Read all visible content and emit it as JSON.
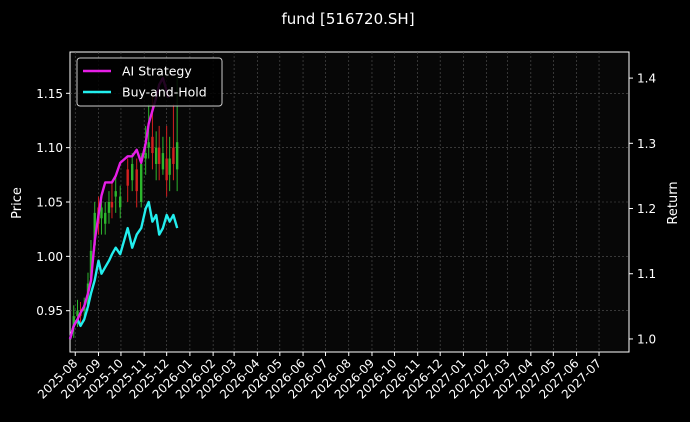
{
  "chart_data": {
    "type": "line",
    "title": "fund [516720.SH]",
    "ylabel_left": "Price",
    "ylabel_right": "Return",
    "x_ticks": [
      "2025-08",
      "2025-09",
      "2025-10",
      "2025-11",
      "2025-12",
      "2026-01",
      "2026-02",
      "2026-03",
      "2026-04",
      "2026-05",
      "2026-06",
      "2026-07",
      "2026-08",
      "2026-09",
      "2026-10",
      "2026-11",
      "2026-12",
      "2027-01",
      "2027-02",
      "2027-03",
      "2027-04",
      "2027-05",
      "2027-06",
      "2027-07"
    ],
    "x_range": [
      "2025-07-25",
      "2027-08-10"
    ],
    "y_left_ticks": [
      0.95,
      1.0,
      1.05,
      1.1,
      1.15
    ],
    "y_left_range": [
      0.912,
      1.188
    ],
    "y_right_ticks": [
      1.0,
      1.1,
      1.2,
      1.3,
      1.4
    ],
    "y_right_range": [
      0.98,
      1.44
    ],
    "grid": true,
    "legend_position": "top-left",
    "colors": {
      "background": "#000000",
      "plot_background": "#070707",
      "ai_strategy": "#e61ee6",
      "buy_and_hold": "#22eeee",
      "candle_up": "#2db52d",
      "candle_down": "#d42020",
      "grid": "#555555"
    },
    "series": [
      {
        "name": "AI Strategy",
        "axis": "right",
        "x": [
          "2025-07-25",
          "2025-07-30",
          "2025-08-04",
          "2025-08-08",
          "2025-08-13",
          "2025-08-18",
          "2025-08-22",
          "2025-08-27",
          "2025-09-01",
          "2025-09-05",
          "2025-09-10",
          "2025-09-15",
          "2025-09-19",
          "2025-09-24",
          "2025-09-30",
          "2025-10-10",
          "2025-10-16",
          "2025-10-22",
          "2025-10-28",
          "2025-11-03",
          "2025-11-07",
          "2025-11-12",
          "2025-11-17",
          "2025-11-21",
          "2025-11-26",
          "2025-12-01",
          "2025-12-03"
        ],
        "values": [
          1.0,
          1.02,
          1.03,
          1.04,
          1.05,
          1.07,
          1.09,
          1.15,
          1.19,
          1.22,
          1.24,
          1.24,
          1.24,
          1.25,
          1.27,
          1.28,
          1.28,
          1.29,
          1.27,
          1.3,
          1.33,
          1.35,
          1.37,
          1.39,
          1.4,
          1.38,
          1.37
        ]
      },
      {
        "name": "Buy-and-Hold",
        "axis": "right",
        "x": [
          "2025-07-25",
          "2025-07-30",
          "2025-08-04",
          "2025-08-08",
          "2025-08-13",
          "2025-08-18",
          "2025-08-22",
          "2025-08-27",
          "2025-09-01",
          "2025-09-05",
          "2025-09-10",
          "2025-09-15",
          "2025-09-19",
          "2025-09-24",
          "2025-09-30",
          "2025-10-10",
          "2025-10-16",
          "2025-10-22",
          "2025-10-28",
          "2025-11-03",
          "2025-11-07",
          "2025-11-12",
          "2025-11-17",
          "2025-11-21",
          "2025-11-26",
          "2025-12-01",
          "2025-12-05",
          "2025-12-10",
          "2025-12-15"
        ],
        "values": [
          1.0,
          1.02,
          1.03,
          1.02,
          1.03,
          1.05,
          1.07,
          1.09,
          1.12,
          1.1,
          1.11,
          1.12,
          1.13,
          1.14,
          1.13,
          1.17,
          1.14,
          1.16,
          1.17,
          1.2,
          1.21,
          1.18,
          1.19,
          1.16,
          1.17,
          1.19,
          1.18,
          1.19,
          1.17
        ]
      },
      {
        "name": "price",
        "axis": "left",
        "type": "candlestick",
        "x": [
          "2025-07-30",
          "2025-08-04",
          "2025-08-08",
          "2025-08-13",
          "2025-08-18",
          "2025-08-22",
          "2025-08-27",
          "2025-09-01",
          "2025-09-05",
          "2025-09-10",
          "2025-09-15",
          "2025-09-19",
          "2025-09-24",
          "2025-09-30",
          "2025-10-10",
          "2025-10-16",
          "2025-10-22",
          "2025-10-28",
          "2025-11-03",
          "2025-11-07",
          "2025-11-12",
          "2025-11-17",
          "2025-11-21",
          "2025-11-26",
          "2025-12-01",
          "2025-12-05",
          "2025-12-10",
          "2025-12-15"
        ],
        "open": [
          0.935,
          0.945,
          0.948,
          0.95,
          0.955,
          0.98,
          1.01,
          1.045,
          1.035,
          1.03,
          1.04,
          1.05,
          1.055,
          1.045,
          1.08,
          1.07,
          1.08,
          1.05,
          1.09,
          1.1,
          1.11,
          1.085,
          1.1,
          1.08,
          1.09,
          1.075,
          1.1,
          1.08
        ],
        "close": [
          0.945,
          0.95,
          0.945,
          0.955,
          0.975,
          1.005,
          1.04,
          1.03,
          1.045,
          1.04,
          1.05,
          1.045,
          1.06,
          1.055,
          1.065,
          1.085,
          1.06,
          1.085,
          1.095,
          1.105,
          1.095,
          1.1,
          1.085,
          1.095,
          1.07,
          1.09,
          1.085,
          1.105
        ],
        "high": [
          0.955,
          0.96,
          0.958,
          0.962,
          0.985,
          1.015,
          1.05,
          1.055,
          1.055,
          1.05,
          1.06,
          1.07,
          1.075,
          1.065,
          1.09,
          1.095,
          1.09,
          1.095,
          1.12,
          1.14,
          1.15,
          1.115,
          1.12,
          1.11,
          1.12,
          1.11,
          1.14,
          1.165
        ],
        "low": [
          0.925,
          0.935,
          0.935,
          0.94,
          0.95,
          0.975,
          1.005,
          1.02,
          1.02,
          1.02,
          1.03,
          1.035,
          1.04,
          1.035,
          1.05,
          1.06,
          1.045,
          1.045,
          1.075,
          1.09,
          1.08,
          1.07,
          1.07,
          1.075,
          1.055,
          1.06,
          1.07,
          1.06
        ]
      }
    ]
  }
}
